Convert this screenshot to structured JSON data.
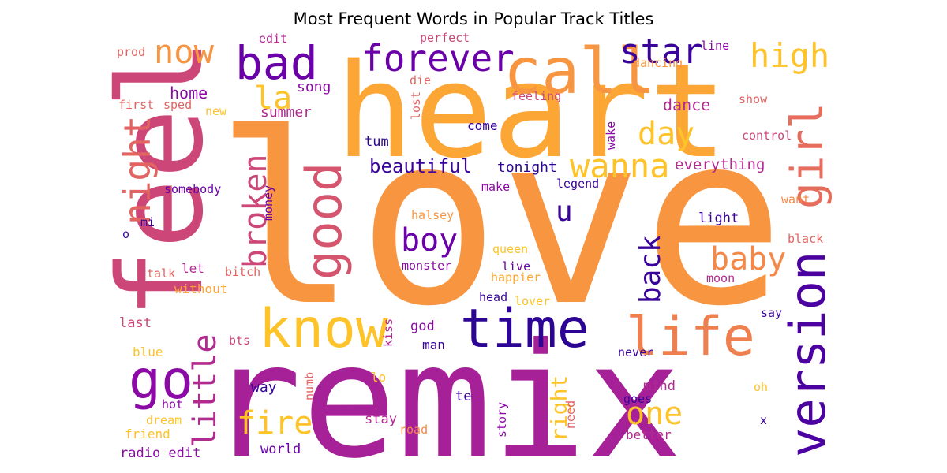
{
  "chart_data": {
    "type": "wordcloud",
    "title": "Most Frequent Words in Popular Track Titles",
    "palette": "plasma",
    "words": [
      {
        "text": "love",
        "color": "#f89540"
      },
      {
        "text": "heart",
        "color": "#fca636"
      },
      {
        "text": "remix",
        "color": "#a62098"
      },
      {
        "text": "feel",
        "color": "#cc4778"
      },
      {
        "text": "time",
        "color": "#2c0594"
      },
      {
        "text": "life",
        "color": "#f07f4f"
      },
      {
        "text": "know",
        "color": "#fdc328"
      },
      {
        "text": "version",
        "color": "#4c02a1"
      },
      {
        "text": "bad",
        "color": "#6a00a8"
      },
      {
        "text": "call",
        "color": "#f89540"
      },
      {
        "text": "good",
        "color": "#d5546e"
      },
      {
        "text": "go",
        "color": "#8b0aa5"
      },
      {
        "text": "forever",
        "color": "#6a00a8"
      },
      {
        "text": "night",
        "color": "#e16462"
      },
      {
        "text": "girl",
        "color": "#e66c5c"
      },
      {
        "text": "star",
        "color": "#3a049a"
      },
      {
        "text": "now",
        "color": "#f89540"
      },
      {
        "text": "high",
        "color": "#fdc328"
      },
      {
        "text": "wanna",
        "color": "#fdc328"
      },
      {
        "text": "day",
        "color": "#fdc328"
      },
      {
        "text": "broken",
        "color": "#cc4778"
      },
      {
        "text": "boy",
        "color": "#6a00a8"
      },
      {
        "text": "baby",
        "color": "#f48849"
      },
      {
        "text": "back",
        "color": "#3a049a"
      },
      {
        "text": "little",
        "color": "#b12a90"
      },
      {
        "text": "fire",
        "color": "#fdc328"
      },
      {
        "text": "one",
        "color": "#fdc328"
      },
      {
        "text": "right",
        "color": "#fdc328"
      },
      {
        "text": "u",
        "color": "#3a049a"
      },
      {
        "text": "la",
        "color": "#fdc328"
      },
      {
        "text": "beautiful",
        "color": "#3a049a"
      },
      {
        "text": "tonight",
        "color": "#2c0594"
      },
      {
        "text": "everything",
        "color": "#b12a90"
      },
      {
        "text": "home",
        "color": "#8b0aa5"
      },
      {
        "text": "song",
        "color": "#8b0aa5"
      },
      {
        "text": "dance",
        "color": "#b12a90"
      },
      {
        "text": "summer",
        "color": "#b12a90"
      },
      {
        "text": "edit",
        "color": "#b12a90"
      },
      {
        "text": "perfect",
        "color": "#cc4778"
      },
      {
        "text": "line",
        "color": "#8b0aa5"
      },
      {
        "text": "prod",
        "color": "#e16462"
      },
      {
        "text": "dancing",
        "color": "#f89540"
      },
      {
        "text": "first",
        "color": "#e16462"
      },
      {
        "text": "sped",
        "color": "#e16462"
      },
      {
        "text": "new",
        "color": "#fdc328"
      },
      {
        "text": "die",
        "color": "#e16462"
      },
      {
        "text": "lost",
        "color": "#e16462"
      },
      {
        "text": "feeling",
        "color": "#cc4778"
      },
      {
        "text": "show",
        "color": "#e16462"
      },
      {
        "text": "come",
        "color": "#3a049a"
      },
      {
        "text": "wake",
        "color": "#8b0aa5"
      },
      {
        "text": "control",
        "color": "#cc4778"
      },
      {
        "text": "tum",
        "color": "#2c0594"
      },
      {
        "text": "somebody",
        "color": "#6a00a8"
      },
      {
        "text": "money",
        "color": "#6a00a8"
      },
      {
        "text": "make",
        "color": "#8b0aa5"
      },
      {
        "text": "legend",
        "color": "#3a049a"
      },
      {
        "text": "want",
        "color": "#f48849"
      },
      {
        "text": "mi",
        "color": "#3a049a"
      },
      {
        "text": "o",
        "color": "#3a049a"
      },
      {
        "text": "halsey",
        "color": "#f89540"
      },
      {
        "text": "light",
        "color": "#3a049a"
      },
      {
        "text": "black",
        "color": "#e16462"
      },
      {
        "text": "queen",
        "color": "#fdc328"
      },
      {
        "text": "talk",
        "color": "#e16462"
      },
      {
        "text": "let",
        "color": "#b12a90"
      },
      {
        "text": "bitch",
        "color": "#e16462"
      },
      {
        "text": "monster",
        "color": "#8b0aa5"
      },
      {
        "text": "live",
        "color": "#6a00a8"
      },
      {
        "text": "happier",
        "color": "#fca636"
      },
      {
        "text": "moon",
        "color": "#b12a90"
      },
      {
        "text": "without",
        "color": "#fca636"
      },
      {
        "text": "head",
        "color": "#3a049a"
      },
      {
        "text": "lover",
        "color": "#fdc328"
      },
      {
        "text": "last",
        "color": "#cc4778"
      },
      {
        "text": "god",
        "color": "#8b0aa5"
      },
      {
        "text": "kiss",
        "color": "#b12a90"
      },
      {
        "text": "say",
        "color": "#3a049a"
      },
      {
        "text": "blue",
        "color": "#fdc328"
      },
      {
        "text": "bts",
        "color": "#cc4778"
      },
      {
        "text": "man",
        "color": "#3a049a"
      },
      {
        "text": "never",
        "color": "#3a049a"
      },
      {
        "text": "way",
        "color": "#3a049a"
      },
      {
        "text": "lo",
        "color": "#fdc328"
      },
      {
        "text": "mind",
        "color": "#b12a90"
      },
      {
        "text": "oh",
        "color": "#fdc328"
      },
      {
        "text": "numb",
        "color": "#e16462"
      },
      {
        "text": "hot",
        "color": "#8b0aa5"
      },
      {
        "text": "te",
        "color": "#3a049a"
      },
      {
        "text": "goes",
        "color": "#3a049a"
      },
      {
        "text": "dream",
        "color": "#fdc328"
      },
      {
        "text": "need",
        "color": "#e16462"
      },
      {
        "text": "x",
        "color": "#3a049a"
      },
      {
        "text": "friend",
        "color": "#fdc328"
      },
      {
        "text": "stay",
        "color": "#b12a90"
      },
      {
        "text": "story",
        "color": "#8b0aa5"
      },
      {
        "text": "road",
        "color": "#f48849"
      },
      {
        "text": "better",
        "color": "#b12a90"
      },
      {
        "text": "radio edit",
        "color": "#8b0aa5"
      },
      {
        "text": "world",
        "color": "#6a00a8"
      }
    ]
  }
}
